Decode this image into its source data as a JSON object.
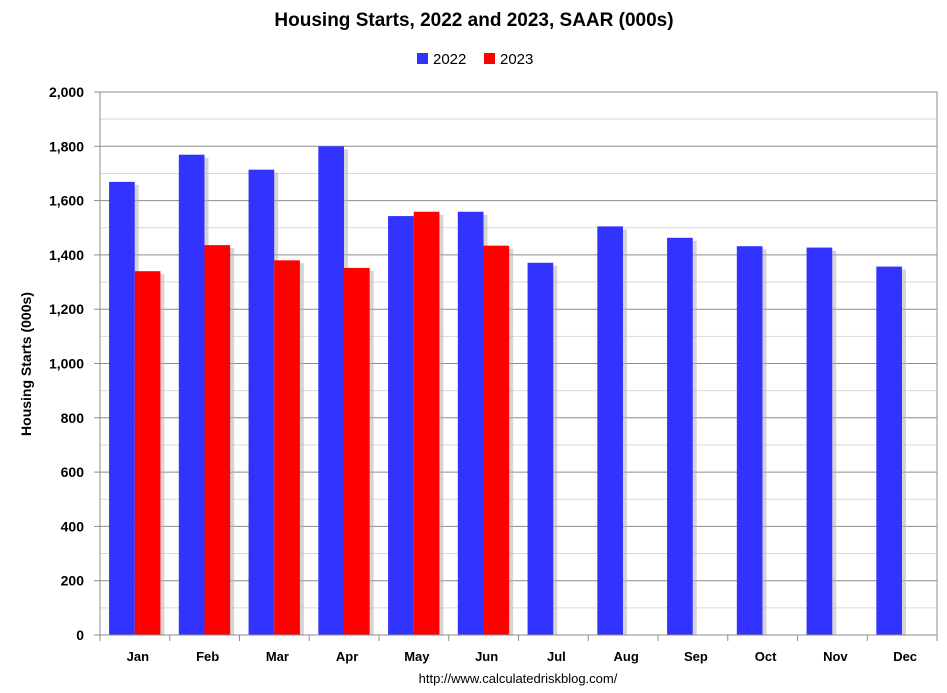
{
  "chart_data": {
    "type": "bar",
    "title": "Housing Starts,  2022 and 2023, SAAR (000s)",
    "ylabel": "Housing Starts (000s)",
    "xlabel": "",
    "categories": [
      "Jan",
      "Feb",
      "Mar",
      "Apr",
      "May",
      "Jun",
      "Jul",
      "Aug",
      "Sep",
      "Oct",
      "Nov",
      "Dec"
    ],
    "series": [
      {
        "name": "2022",
        "color": "#3333ff",
        "values": [
          1669,
          1769,
          1714,
          1800,
          1543,
          1559,
          1371,
          1505,
          1463,
          1432,
          1427,
          1357
        ]
      },
      {
        "name": "2023",
        "color": "#ff0000",
        "values": [
          1340,
          1436,
          1380,
          1352,
          1559,
          1434,
          null,
          null,
          null,
          null,
          null,
          null
        ]
      }
    ],
    "ylim": [
      0,
      2000
    ],
    "yticks": [
      0,
      200,
      400,
      600,
      800,
      1000,
      1200,
      1400,
      1600,
      1800,
      2000
    ],
    "ytick_labels": [
      "0",
      "200",
      "400",
      "600",
      "800",
      "1,000",
      "1,200",
      "1,400",
      "1,600",
      "1,800",
      "2,000"
    ],
    "grid": true,
    "legend_position": "top-center"
  },
  "source_note": "http://www.calculatedriskblog.com/"
}
